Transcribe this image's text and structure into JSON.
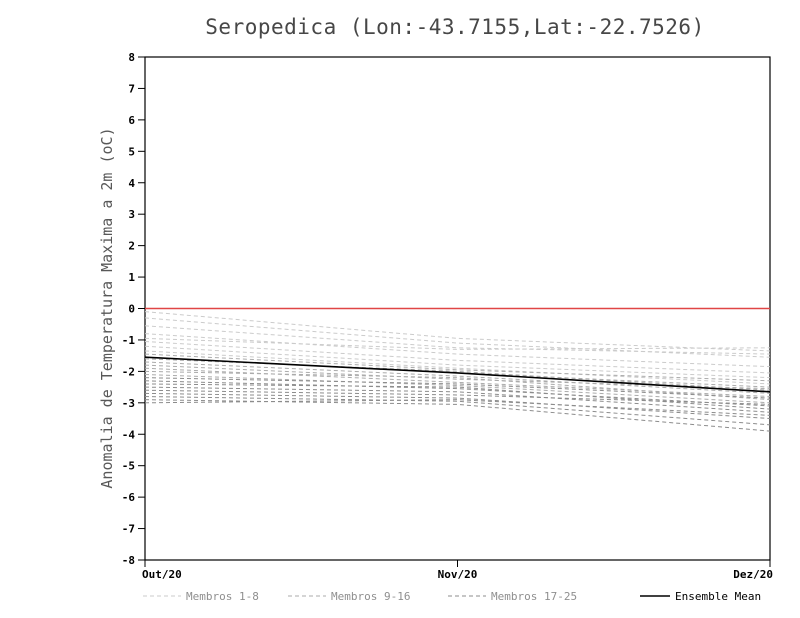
{
  "title": "Seropedica (Lon:-43.7155,Lat:-22.7526)",
  "ylabel": "Anomalia de Temperatura Maxima a 2m (oC)",
  "colors": {
    "zero_line": "#e04545",
    "group1": "#cbcbcb",
    "group2": "#ababab",
    "group3": "#8c8c8c",
    "mean": "#000000",
    "axis": "#000000"
  },
  "chart_data": {
    "type": "line",
    "x_categories": [
      "Out/20",
      "Nov/20",
      "Dez/20"
    ],
    "ylim": [
      -8,
      8
    ],
    "ytick_step": 1,
    "zero_line_value": 0,
    "series_groups": [
      {
        "name": "Membros 1-8",
        "style": "dashed",
        "color_key": "group1",
        "members": [
          [
            -0.1,
            -0.95,
            -1.35
          ],
          [
            -0.3,
            -1.1,
            -1.55
          ],
          [
            -0.55,
            -1.25,
            -1.45
          ],
          [
            -0.8,
            -1.45,
            -1.85
          ],
          [
            -0.95,
            -1.3,
            -1.25
          ],
          [
            -1.05,
            -1.65,
            -2.05
          ],
          [
            -1.2,
            -1.8,
            -2.2
          ],
          [
            -1.35,
            -1.9,
            -2.4
          ]
        ]
      },
      {
        "name": "Membros 9-16",
        "style": "dashed",
        "color_key": "group2",
        "members": [
          [
            -1.45,
            -1.95,
            -2.3
          ],
          [
            -1.55,
            -2.05,
            -2.5
          ],
          [
            -1.6,
            -2.0,
            -2.6
          ],
          [
            -1.7,
            -2.15,
            -2.7
          ],
          [
            -1.8,
            -2.25,
            -2.55
          ],
          [
            -1.9,
            -2.35,
            -2.8
          ],
          [
            -2.0,
            -2.2,
            -2.9
          ],
          [
            -2.1,
            -2.45,
            -3.0
          ]
        ]
      },
      {
        "name": "Membros 17-25",
        "style": "dashed",
        "color_key": "group3",
        "members": [
          [
            -2.2,
            -2.4,
            -2.85
          ],
          [
            -2.3,
            -2.55,
            -3.1
          ],
          [
            -2.4,
            -2.5,
            -3.2
          ],
          [
            -2.5,
            -2.65,
            -3.3
          ],
          [
            -2.6,
            -2.75,
            -3.05
          ],
          [
            -2.7,
            -2.85,
            -3.5
          ],
          [
            -2.8,
            -2.95,
            -3.7
          ],
          [
            -2.9,
            -3.05,
            -3.9
          ],
          [
            -3.0,
            -2.9,
            -3.4
          ]
        ]
      }
    ],
    "mean": {
      "name": "Ensemble Mean",
      "values": [
        -1.55,
        -2.05,
        -2.65
      ]
    }
  },
  "legend": [
    {
      "label": "Membros 1-8",
      "style": "dashed",
      "color": "#cbcbcb"
    },
    {
      "label": "Membros 9-16",
      "style": "dashed",
      "color": "#ababab"
    },
    {
      "label": "Membros 17-25",
      "style": "dashed",
      "color": "#8c8c8c"
    },
    {
      "label": "Ensemble Mean",
      "style": "solid",
      "color": "#000000"
    }
  ]
}
